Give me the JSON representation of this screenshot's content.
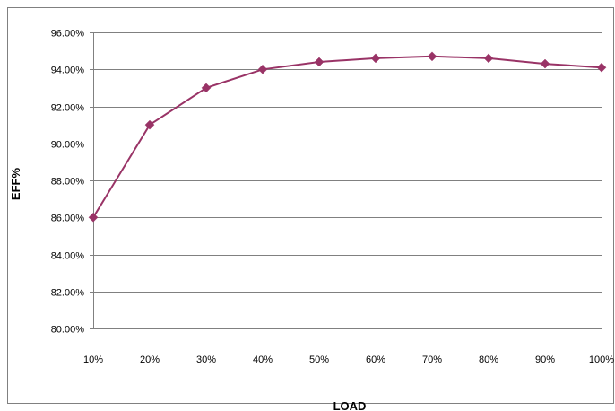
{
  "chart_data": {
    "type": "line",
    "title": "",
    "xlabel": "LOAD",
    "ylabel": "EFF%",
    "categories": [
      "10%",
      "20%",
      "30%",
      "40%",
      "50%",
      "60%",
      "70%",
      "80%",
      "90%",
      "100%"
    ],
    "series": [
      {
        "values": [
          86.0,
          91.0,
          93.0,
          94.0,
          94.4,
          94.6,
          94.7,
          94.6,
          94.3,
          94.1
        ],
        "color": "#993366",
        "marker": "diamond"
      }
    ],
    "ylim": [
      80,
      96
    ],
    "yticks": [
      "80.00%",
      "82.00%",
      "84.00%",
      "86.00%",
      "88.00%",
      "90.00%",
      "92.00%",
      "94.00%",
      "96.00%"
    ],
    "grid": true,
    "legend": "none"
  }
}
